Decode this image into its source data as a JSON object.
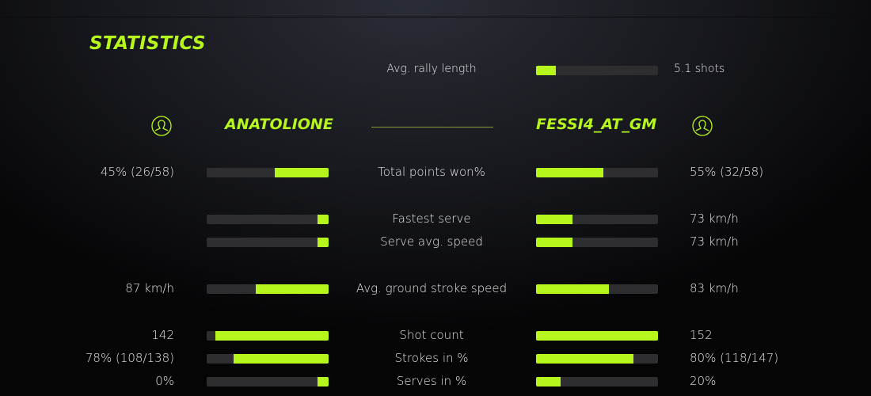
{
  "title": "STATISTICS",
  "accent": "#b6f61d",
  "rally": {
    "label": "Avg. rally length",
    "value": "5.1 shots",
    "fill": 16
  },
  "players": {
    "left": {
      "name": "ANATOLIONE",
      "icon": "user-icon"
    },
    "right": {
      "name": "FESSI4_AT_GM",
      "icon": "user-icon"
    }
  },
  "stats": [
    {
      "label": "Total points won%",
      "left": "45% (26/58)",
      "right": "55% (32/58)",
      "left_fill": 44,
      "right_fill": 55
    },
    {
      "label": "Fastest serve",
      "left": "",
      "right": "73 km/h",
      "left_fill": 9,
      "right_fill": 30
    },
    {
      "label": "Serve avg. speed",
      "left": "",
      "right": "73 km/h",
      "left_fill": 9,
      "right_fill": 30
    },
    {
      "label": "Avg. ground stroke speed",
      "left": "87 km/h",
      "right": "83 km/h",
      "left_fill": 60,
      "right_fill": 60
    },
    {
      "label": "Shot count",
      "left": "142",
      "right": "152",
      "left_fill": 93,
      "right_fill": 100
    },
    {
      "label": "Strokes in %",
      "left": "78% (108/138)",
      "right": "80% (118/147)",
      "left_fill": 78,
      "right_fill": 80
    },
    {
      "label": "Serves in %",
      "left": "0%",
      "right": "20%",
      "left_fill": 9,
      "right_fill": 20
    }
  ]
}
